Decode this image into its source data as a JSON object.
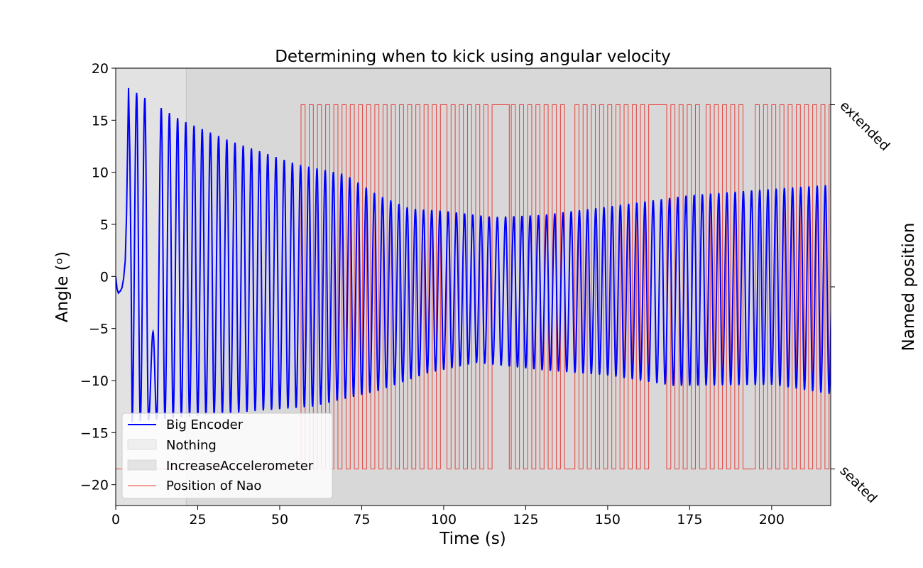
{
  "chart_data": {
    "type": "line",
    "title": "Determining when to kick using angular velocity",
    "xlabel": "Time (s)",
    "ylabel": "Angle (ᵒ)",
    "y2label": "Named position",
    "xlim": [
      0,
      218
    ],
    "ylim": [
      -22,
      20
    ],
    "xticks": [
      0,
      25,
      50,
      75,
      100,
      125,
      150,
      175,
      200
    ],
    "yticks": [
      20,
      15,
      10,
      5,
      0,
      -5,
      -10,
      -15,
      -20
    ],
    "ytick_labels": [
      "20",
      "15",
      "10",
      "5",
      "0",
      "−5",
      "−10",
      "−15",
      "−20"
    ],
    "y2_categories": [
      "extended",
      "seated"
    ],
    "regions": [
      {
        "name": "Nothing",
        "x": [
          0,
          21.5
        ],
        "color": "#e2e2e2"
      },
      {
        "name": "IncreaseAccelerometer",
        "x": [
          21.5,
          218
        ],
        "color": "#d8d8d8"
      }
    ],
    "series": [
      {
        "name": "Big Encoder",
        "color": "#0000ff",
        "period_s": 2.5,
        "max_envelope": [
          [
            3.9,
            18.1
          ],
          [
            20,
            15.0
          ],
          [
            35,
            13.0
          ],
          [
            55,
            10.8
          ],
          [
            70,
            9.8
          ],
          [
            80,
            7.8
          ],
          [
            90,
            6.5
          ],
          [
            100,
            6.3
          ],
          [
            115,
            5.7
          ],
          [
            130,
            5.9
          ],
          [
            150,
            6.7
          ],
          [
            175,
            7.8
          ],
          [
            200,
            8.4
          ],
          [
            218,
            8.8
          ]
        ],
        "min_envelope": [
          [
            3,
            -14.0
          ],
          [
            40,
            -13.0
          ],
          [
            60,
            -12.5
          ],
          [
            80,
            -11.0
          ],
          [
            95,
            -9.3
          ],
          [
            110,
            -8.3
          ],
          [
            130,
            -9.0
          ],
          [
            150,
            -9.5
          ],
          [
            170,
            -10.5
          ],
          [
            200,
            -10.4
          ],
          [
            218,
            -11.3
          ]
        ]
      },
      {
        "name": "Position of Nao",
        "color": "#e8403a",
        "levels": [
          "seated",
          "extended"
        ],
        "start_level": "seated",
        "first_switch_s": 56.5,
        "period_s": 2.5
      }
    ],
    "legend": {
      "position": "lower-left",
      "entries": [
        {
          "label": "Big Encoder",
          "kind": "line",
          "color": "#0000ff"
        },
        {
          "label": "Nothing",
          "kind": "patch",
          "color": "#efefef"
        },
        {
          "label": "IncreaseAccelerometer",
          "kind": "patch",
          "color": "#e4e4e4"
        },
        {
          "label": "Position of Nao",
          "kind": "line",
          "color": "#e8403a"
        }
      ]
    }
  }
}
